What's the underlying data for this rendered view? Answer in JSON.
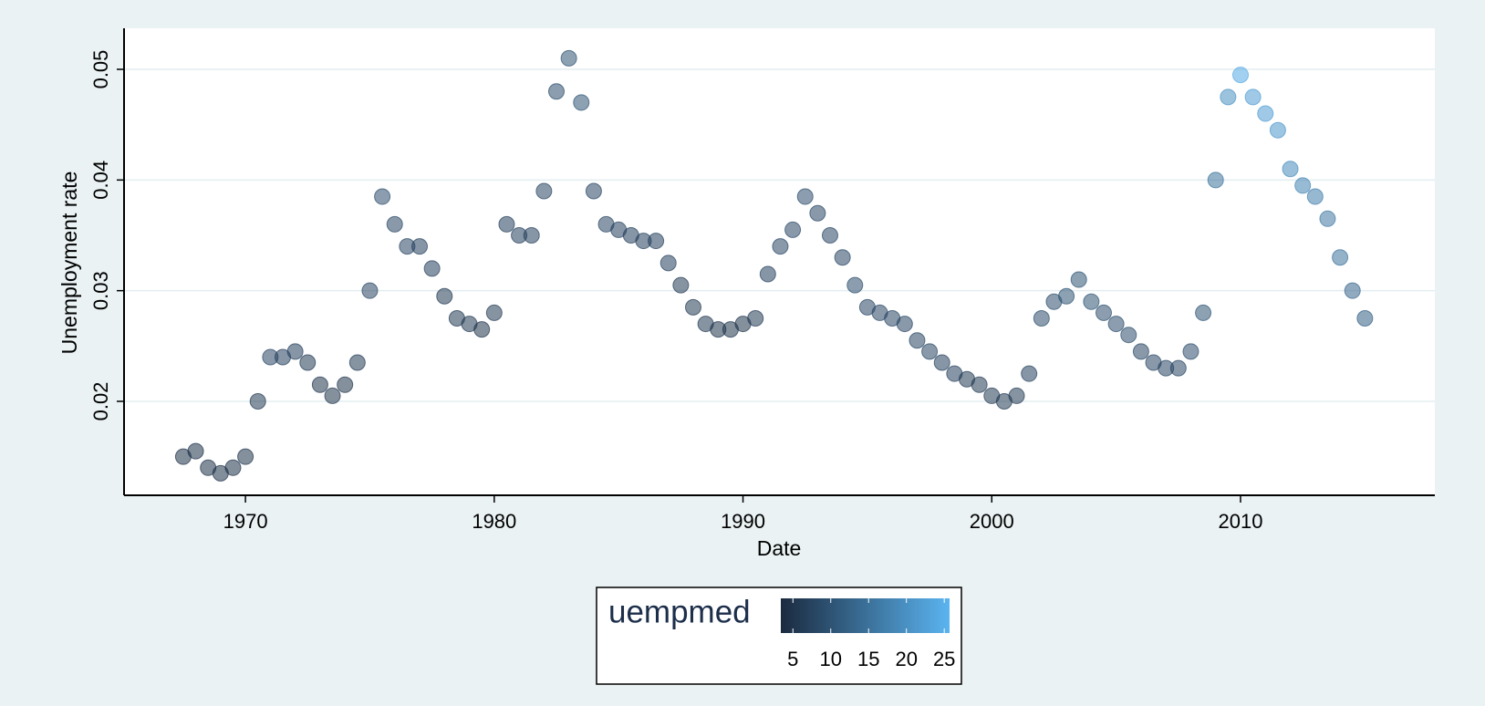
{
  "chart_data": {
    "type": "scatter",
    "xlabel": "Date",
    "ylabel": "Unemployment rate",
    "xlim": [
      1965.12,
      2017.81
    ],
    "ylim": [
      0.01151,
      0.05371
    ],
    "xticks": [
      1970,
      1980,
      1990,
      2000,
      2010
    ],
    "yticks": [
      0.02,
      0.03,
      0.04,
      0.05
    ],
    "grid": true,
    "x": [
      1967.5,
      1968.0,
      1968.5,
      1969.0,
      1969.5,
      1970.0,
      1970.5,
      1971.0,
      1971.5,
      1972.0,
      1972.5,
      1973.0,
      1973.5,
      1974.0,
      1974.5,
      1975.0,
      1975.5,
      1976.0,
      1976.5,
      1977.0,
      1977.5,
      1978.0,
      1978.5,
      1979.0,
      1979.5,
      1980.0,
      1980.5,
      1981.0,
      1981.5,
      1982.0,
      1982.5,
      1983.0,
      1983.5,
      1984.0,
      1984.5,
      1985.0,
      1985.5,
      1986.0,
      1986.5,
      1987.0,
      1987.5,
      1988.0,
      1988.5,
      1989.0,
      1989.5,
      1990.0,
      1990.5,
      1991.0,
      1991.5,
      1992.0,
      1992.5,
      1993.0,
      1993.5,
      1994.0,
      1994.5,
      1995.0,
      1995.5,
      1996.0,
      1996.5,
      1997.0,
      1997.5,
      1998.0,
      1998.5,
      1999.0,
      1999.5,
      2000.0,
      2000.5,
      2001.0,
      2001.5,
      2002.0,
      2002.5,
      2003.0,
      2003.5,
      2004.0,
      2004.5,
      2005.0,
      2005.5,
      2006.0,
      2006.5,
      2007.0,
      2007.5,
      2008.0,
      2008.5,
      2009.0,
      2009.5,
      2010.0,
      2010.5,
      2011.0,
      2011.5,
      2012.0,
      2012.5,
      2013.0,
      2013.5,
      2014.0,
      2014.5,
      2015.0
    ],
    "values": [
      0.015,
      0.0155,
      0.014,
      0.0135,
      0.014,
      0.015,
      0.02,
      0.024,
      0.024,
      0.0245,
      0.0235,
      0.0215,
      0.0205,
      0.0215,
      0.0235,
      0.03,
      0.0385,
      0.036,
      0.034,
      0.034,
      0.032,
      0.0295,
      0.0275,
      0.027,
      0.0265,
      0.028,
      0.036,
      0.035,
      0.035,
      0.039,
      0.048,
      0.051,
      0.047,
      0.039,
      0.036,
      0.0355,
      0.035,
      0.0345,
      0.0345,
      0.0325,
      0.0305,
      0.0285,
      0.027,
      0.0265,
      0.0265,
      0.027,
      0.0275,
      0.0315,
      0.034,
      0.0355,
      0.0385,
      0.037,
      0.035,
      0.033,
      0.0305,
      0.0285,
      0.028,
      0.0275,
      0.027,
      0.0255,
      0.0245,
      0.0235,
      0.0225,
      0.022,
      0.0215,
      0.0205,
      0.02,
      0.0205,
      0.0225,
      0.0275,
      0.029,
      0.0295,
      0.031,
      0.029,
      0.028,
      0.027,
      0.026,
      0.0245,
      0.0235,
      0.023,
      0.023,
      0.0245,
      0.028,
      0.04,
      0.0475,
      0.0495,
      0.0475,
      0.046,
      0.0445,
      0.041,
      0.0395,
      0.0385,
      0.0365,
      0.033,
      0.03,
      0.0275
    ],
    "color_values": [
      4.5,
      4.5,
      4.5,
      4.5,
      4.5,
      5,
      6,
      8,
      7,
      7,
      6,
      5,
      5,
      5,
      6,
      8,
      9,
      8,
      8,
      7,
      7,
      6,
      6,
      6,
      5,
      6,
      7,
      7,
      7,
      8,
      9,
      10,
      10,
      8,
      8,
      7,
      7,
      7,
      7,
      7,
      6,
      6,
      6,
      5,
      5,
      5,
      6,
      7,
      8,
      8,
      9,
      8,
      8,
      8,
      9,
      8,
      8,
      8,
      8,
      8,
      8,
      7,
      7,
      6,
      6,
      6,
      6,
      6,
      7,
      9,
      9,
      10,
      10,
      10,
      9,
      9,
      9,
      8,
      8,
      8,
      8,
      9,
      10,
      15,
      20,
      24,
      22,
      22,
      21,
      19,
      18,
      17,
      16,
      15,
      13,
      12
    ],
    "colorbar": {
      "title": "uempmed",
      "lim": [
        3.4,
        25.7
      ],
      "ticks": [
        5,
        10,
        15,
        20,
        25
      ],
      "colors": [
        "#1b2a3f",
        "#5ab4f0"
      ]
    }
  }
}
